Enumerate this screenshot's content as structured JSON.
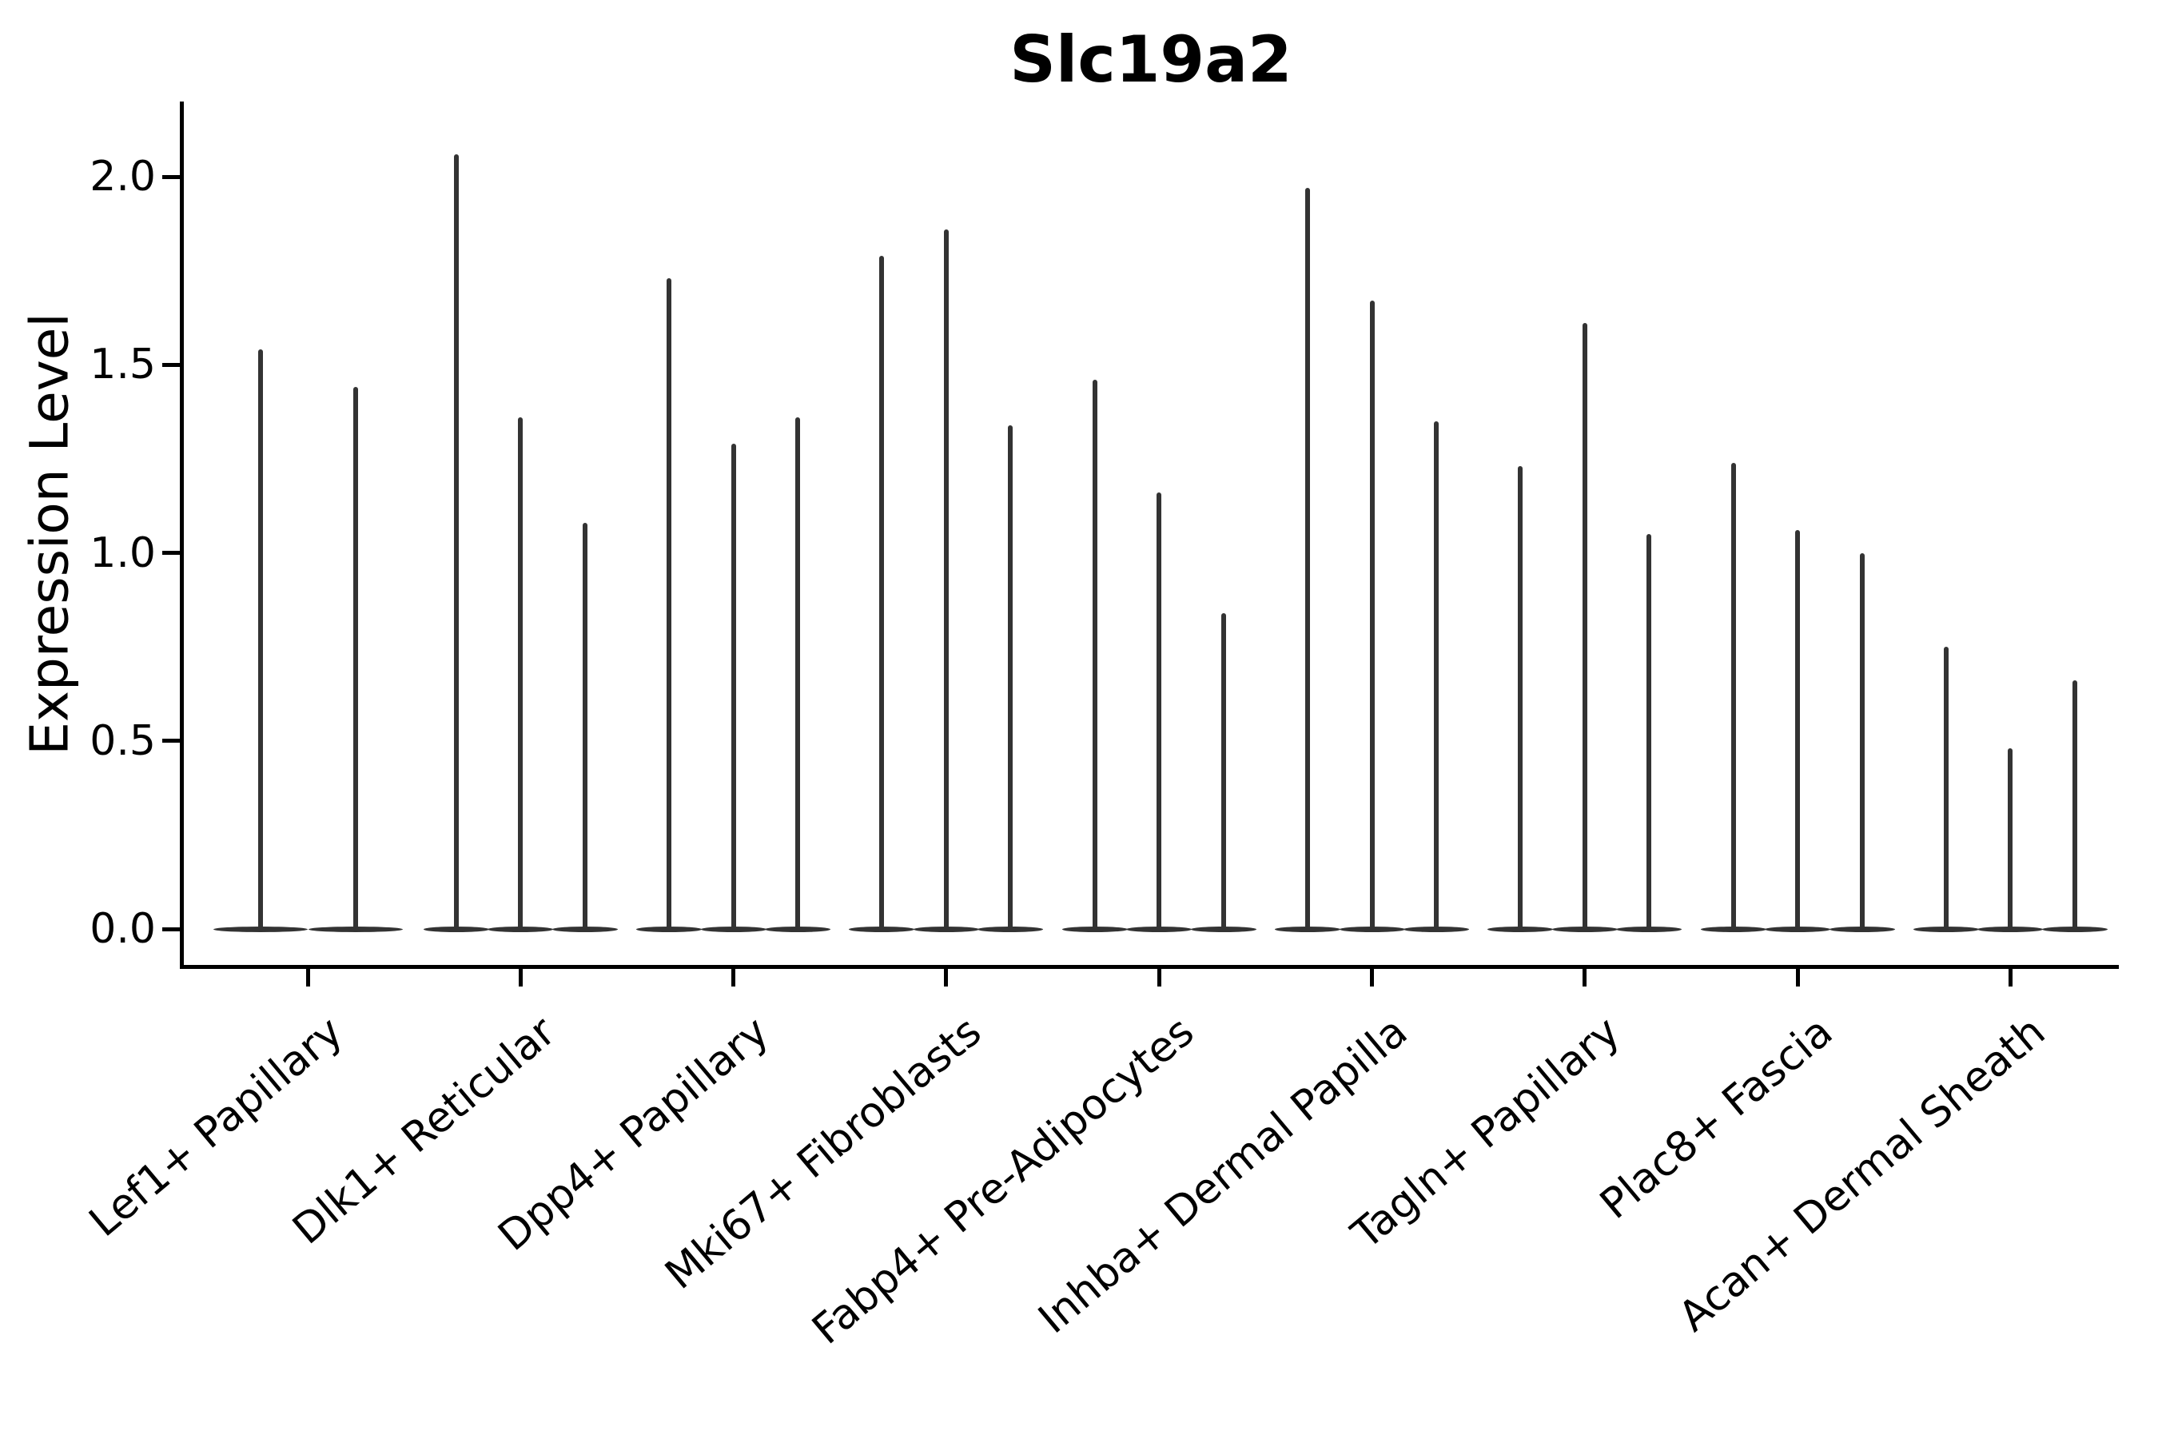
{
  "figure": {
    "title": "Slc19a2",
    "y_axis_label": "Expression Level"
  },
  "chart_data": {
    "type": "violin",
    "title": "Slc19a2",
    "xlabel": "",
    "ylabel": "Expression Level",
    "ylim": [
      -0.12,
      2.2
    ],
    "yticks": [
      0.0,
      0.5,
      1.0,
      1.5,
      2.0
    ],
    "ytick_labels": [
      "0.0",
      "0.5",
      "1.0",
      "1.5",
      "2.0"
    ],
    "grid": false,
    "legend": false,
    "violin_color": "#333333",
    "axis_color": "#000000",
    "background_color": "#ffffff",
    "style_note": "Each category shows very narrow dark-gray violins: a thin vertical spike rising from a wide flat base at y=0",
    "categories": [
      "Lef1+ Papillary",
      "Dlk1+ Reticular",
      "Dpp4+ Papillary",
      "Mki67+ Fibroblasts",
      "Fabp4+ Pre-Adipocytes",
      "Inhba+ Dermal Papilla",
      "Tagln+ Papillary",
      "Plac8+ Fascia",
      "Acan+ Dermal Sheath"
    ],
    "series": [
      {
        "category": "Lef1+ Papillary",
        "violin_max_values": [
          1.54,
          1.44
        ]
      },
      {
        "category": "Dlk1+ Reticular",
        "violin_max_values": [
          2.06,
          1.36,
          1.08
        ]
      },
      {
        "category": "Dpp4+ Papillary",
        "violin_max_values": [
          1.73,
          1.29,
          1.36
        ]
      },
      {
        "category": "Mki67+ Fibroblasts",
        "violin_max_values": [
          1.79,
          1.86,
          1.34
        ]
      },
      {
        "category": "Fabp4+ Pre-Adipocytes",
        "violin_max_values": [
          1.46,
          1.16,
          0.84
        ]
      },
      {
        "category": "Inhba+ Dermal Papilla",
        "violin_max_values": [
          1.97,
          1.67,
          1.35
        ]
      },
      {
        "category": "Tagln+ Papillary",
        "violin_max_values": [
          1.23,
          1.61,
          1.05
        ]
      },
      {
        "category": "Plac8+ Fascia",
        "violin_max_values": [
          1.24,
          1.06,
          1.0
        ]
      },
      {
        "category": "Acan+ Dermal Sheath",
        "violin_max_values": [
          0.75,
          0.48,
          0.66
        ]
      }
    ]
  }
}
